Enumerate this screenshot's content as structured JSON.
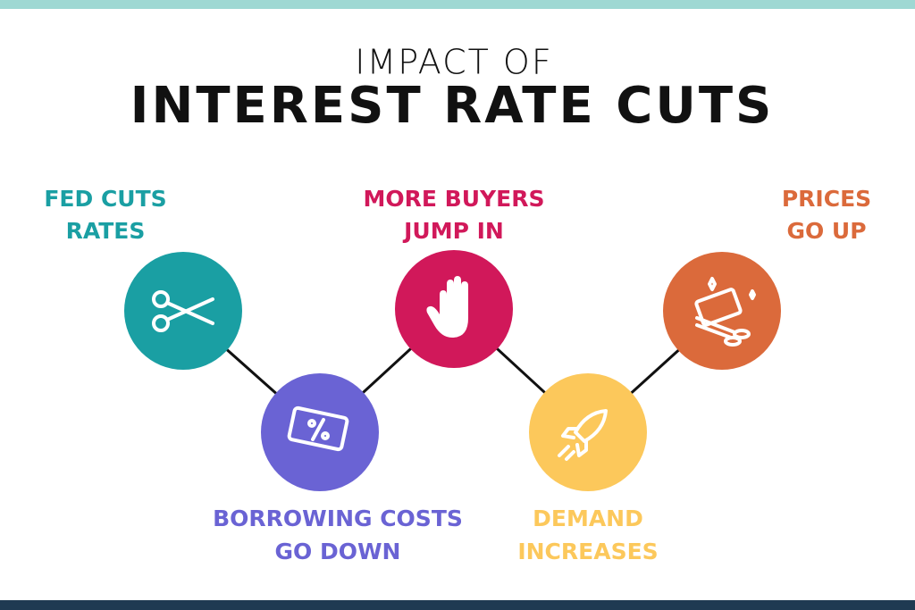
{
  "header": {
    "title_line1": "IMPACT OF",
    "title_line2": "INTEREST RATE CUTS"
  },
  "nodes": [
    {
      "label": [
        "FED CUTS",
        "RATES"
      ]
    },
    {
      "label": [
        "BORROWING COSTS",
        "GO DOWN"
      ]
    },
    {
      "label": [
        "MORE BUYERS",
        "JUMP IN"
      ]
    },
    {
      "label": [
        "DEMAND",
        "INCREASES"
      ]
    },
    {
      "label": [
        "PRICES",
        "GO UP"
      ]
    }
  ]
}
